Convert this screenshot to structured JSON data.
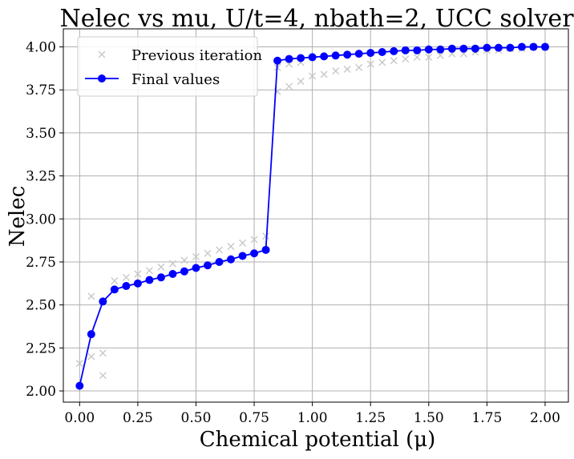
{
  "chart_data": {
    "type": "line",
    "title": "Nelec vs mu, U/t=4, nbath=2, UCC solver",
    "xlabel": "Chemical potential (μ)",
    "ylabel": "Nelec",
    "xlim": [
      -0.07,
      2.1
    ],
    "ylim": [
      1.935,
      4.105
    ],
    "xticks": [
      0.0,
      0.25,
      0.5,
      0.75,
      1.0,
      1.25,
      1.5,
      1.75,
      2.0
    ],
    "xtick_labels": [
      "0.00",
      "0.25",
      "0.50",
      "0.75",
      "1.00",
      "1.25",
      "1.50",
      "1.75",
      "2.00"
    ],
    "yticks": [
      2.0,
      2.25,
      2.5,
      2.75,
      3.0,
      3.25,
      3.5,
      3.75,
      4.0
    ],
    "ytick_labels": [
      "2.00",
      "2.25",
      "2.50",
      "2.75",
      "3.00",
      "3.25",
      "3.50",
      "3.75",
      "4.00"
    ],
    "grid": true,
    "legend_position": "top-left",
    "series": [
      {
        "name": "Previous iteration",
        "style": "markers-x",
        "color": "#c8c8c8",
        "points": [
          [
            0.0,
            2.16
          ],
          [
            0.05,
            2.55
          ],
          [
            0.05,
            2.2
          ],
          [
            0.1,
            2.22
          ],
          [
            0.1,
            2.09
          ],
          [
            0.15,
            2.64
          ],
          [
            0.2,
            2.66
          ],
          [
            0.25,
            2.68
          ],
          [
            0.3,
            2.7
          ],
          [
            0.35,
            2.72
          ],
          [
            0.4,
            2.74
          ],
          [
            0.45,
            2.76
          ],
          [
            0.5,
            2.78
          ],
          [
            0.55,
            2.8
          ],
          [
            0.6,
            2.82
          ],
          [
            0.65,
            2.84
          ],
          [
            0.7,
            2.86
          ],
          [
            0.75,
            2.88
          ],
          [
            0.8,
            2.9
          ],
          [
            0.85,
            3.74
          ],
          [
            0.85,
            3.88
          ],
          [
            0.9,
            3.77
          ],
          [
            0.9,
            3.9
          ],
          [
            0.95,
            3.8
          ],
          [
            0.95,
            3.91
          ],
          [
            1.0,
            3.83
          ],
          [
            1.05,
            3.84
          ],
          [
            1.1,
            3.86
          ],
          [
            1.15,
            3.87
          ],
          [
            1.2,
            3.88
          ],
          [
            1.25,
            3.9
          ],
          [
            1.3,
            3.91
          ],
          [
            1.35,
            3.92
          ],
          [
            1.4,
            3.93
          ],
          [
            1.45,
            3.94
          ],
          [
            1.5,
            3.94
          ],
          [
            1.55,
            3.95
          ],
          [
            1.6,
            3.96
          ],
          [
            1.65,
            3.96
          ],
          [
            1.7,
            3.97
          ],
          [
            1.75,
            3.98
          ],
          [
            1.8,
            3.98
          ],
          [
            1.85,
            3.99
          ],
          [
            1.9,
            3.99
          ],
          [
            1.95,
            4.0
          ],
          [
            2.0,
            4.0
          ]
        ]
      },
      {
        "name": "Final values",
        "style": "line-markers-o",
        "color": "#0000ff",
        "points": [
          [
            0.0,
            2.03
          ],
          [
            0.05,
            2.33
          ],
          [
            0.1,
            2.52
          ],
          [
            0.15,
            2.59
          ],
          [
            0.2,
            2.61
          ],
          [
            0.25,
            2.625
          ],
          [
            0.3,
            2.645
          ],
          [
            0.35,
            2.66
          ],
          [
            0.4,
            2.68
          ],
          [
            0.45,
            2.695
          ],
          [
            0.5,
            2.715
          ],
          [
            0.55,
            2.73
          ],
          [
            0.6,
            2.75
          ],
          [
            0.65,
            2.765
          ],
          [
            0.7,
            2.785
          ],
          [
            0.75,
            2.8
          ],
          [
            0.8,
            2.82
          ],
          [
            0.85,
            3.92
          ],
          [
            0.9,
            3.93
          ],
          [
            0.95,
            3.935
          ],
          [
            1.0,
            3.94
          ],
          [
            1.05,
            3.945
          ],
          [
            1.1,
            3.95
          ],
          [
            1.15,
            3.955
          ],
          [
            1.2,
            3.96
          ],
          [
            1.25,
            3.965
          ],
          [
            1.3,
            3.97
          ],
          [
            1.35,
            3.975
          ],
          [
            1.4,
            3.98
          ],
          [
            1.45,
            3.98
          ],
          [
            1.5,
            3.985
          ],
          [
            1.55,
            3.985
          ],
          [
            1.6,
            3.99
          ],
          [
            1.65,
            3.99
          ],
          [
            1.7,
            3.99
          ],
          [
            1.75,
            3.995
          ],
          [
            1.8,
            3.995
          ],
          [
            1.85,
            3.995
          ],
          [
            1.9,
            4.0
          ],
          [
            1.95,
            4.0
          ],
          [
            2.0,
            4.0
          ]
        ]
      }
    ]
  }
}
